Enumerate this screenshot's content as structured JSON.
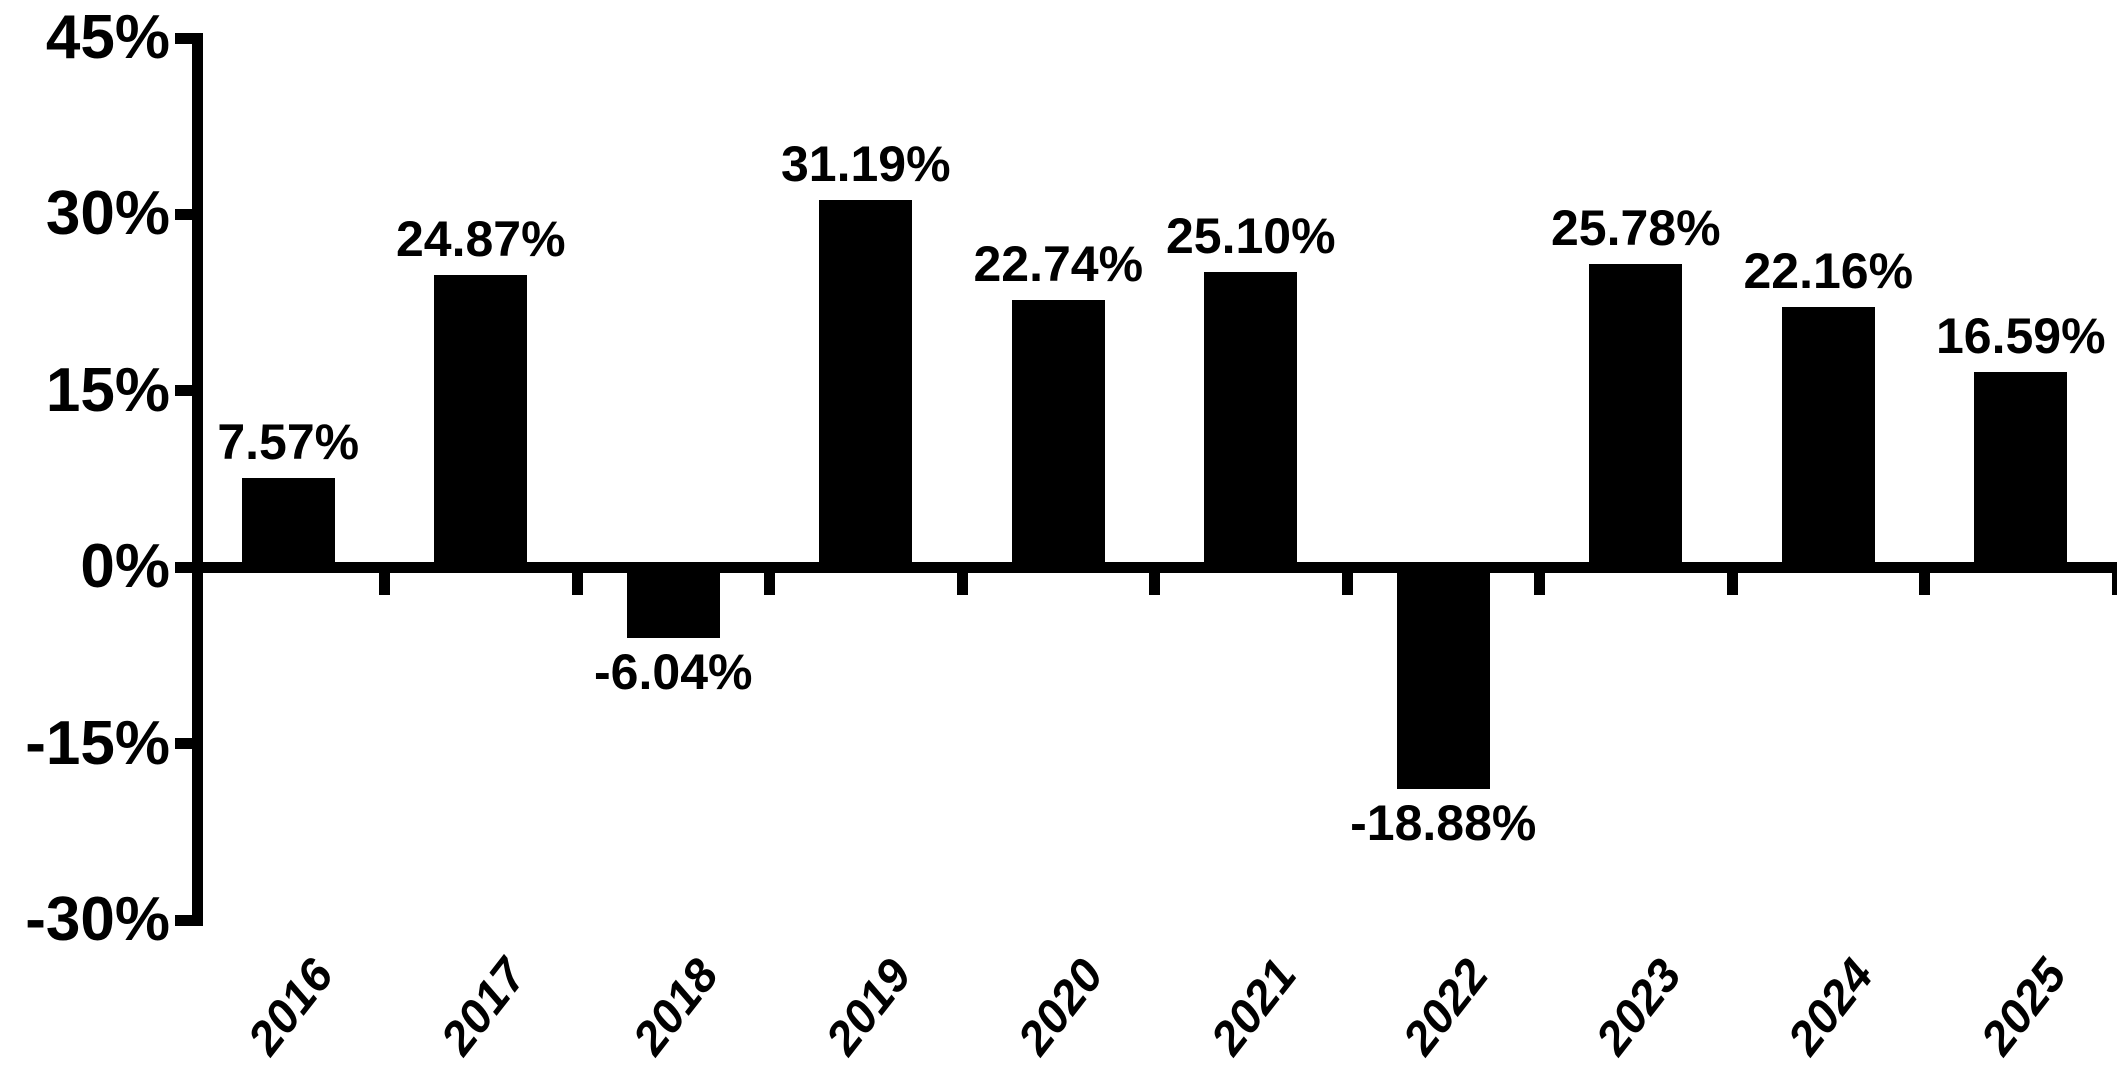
{
  "chart_data": {
    "type": "bar",
    "title": "",
    "xlabel": "",
    "ylabel": "",
    "categories": [
      "2016",
      "2017",
      "2018",
      "2019",
      "2020",
      "2021",
      "2022",
      "2023",
      "2024",
      "2025"
    ],
    "values": [
      7.57,
      24.87,
      -6.04,
      31.19,
      22.74,
      25.1,
      -18.88,
      25.78,
      22.16,
      16.59
    ],
    "data_labels": [
      "7.57%",
      "24.87%",
      "-6.04%",
      "31.19%",
      "22.74%",
      "25.10%",
      "-18.88%",
      "25.78%",
      "22.16%",
      "16.59%"
    ],
    "y_ticks": [
      {
        "value": 45,
        "label": "45%"
      },
      {
        "value": 30,
        "label": "30%"
      },
      {
        "value": 15,
        "label": "15%"
      },
      {
        "value": 0,
        "label": "0%"
      },
      {
        "value": -15,
        "label": "-15%"
      },
      {
        "value": -30,
        "label": "-30%"
      }
    ],
    "ylim": [
      -30,
      45
    ],
    "grid": false,
    "legend_visible": false,
    "bar_color": "#000000",
    "axis_color": "#000000",
    "text_color": "#000000",
    "background_color": "#ffffff"
  }
}
